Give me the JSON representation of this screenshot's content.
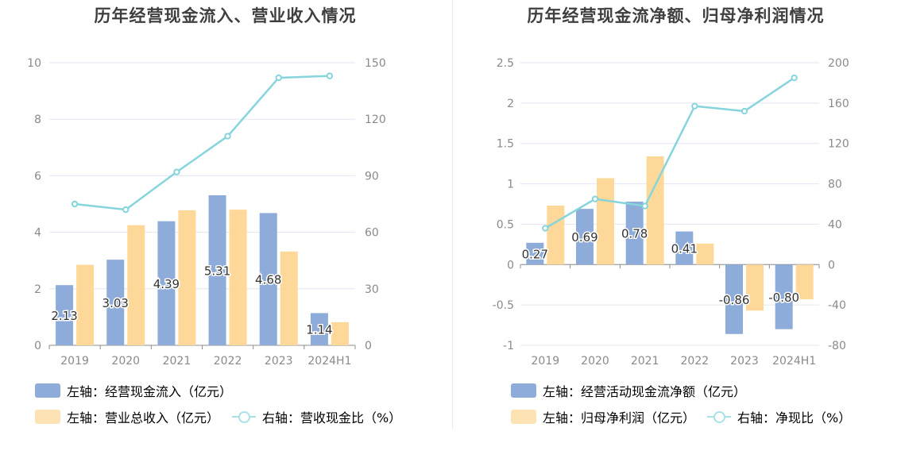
{
  "colors": {
    "bar_primary": "#8eacd9",
    "bar_secondary": "#fdd899",
    "bar_primary_legend": "#8eacd9",
    "bar_secondary_legend": "#fde3b4",
    "line": "#86d4dc",
    "grid": "#e3e6f2",
    "axis_text": "#8a8a8a",
    "value_label": "#333333"
  },
  "charts": [
    {
      "title": "历年经营现金流入、营业收入情况",
      "legend": {
        "bar1": "左轴：经营现金流入（亿元）",
        "bar2": "左轴：营业总收入（亿元）",
        "line": "右轴：营收现金比（%）"
      }
    },
    {
      "title": "历年经营现金流净额、归母净利润情况",
      "legend": {
        "bar1": "左轴：经营活动现金流净额（亿元）",
        "bar2": "左轴：归母净利润（亿元）",
        "line": "右轴：净现比（%）"
      }
    }
  ],
  "chart_data": [
    {
      "type": "bar",
      "title": "历年经营现金流入、营业收入情况",
      "categories": [
        "2019",
        "2020",
        "2021",
        "2022",
        "2023",
        "2024H1"
      ],
      "series": [
        {
          "name": "左轴：经营现金流入（亿元）",
          "axis": "left",
          "type": "bar",
          "values": [
            2.13,
            3.03,
            4.39,
            5.31,
            4.68,
            1.14
          ],
          "labels": [
            "2.13",
            "3.03",
            "4.39",
            "5.31",
            "4.68",
            "1.14"
          ]
        },
        {
          "name": "左轴：营业总收入（亿元）",
          "axis": "left",
          "type": "bar",
          "values": [
            2.85,
            4.25,
            4.78,
            4.8,
            3.32,
            0.82
          ]
        },
        {
          "name": "右轴：营收现金比（%）",
          "axis": "right",
          "type": "line",
          "values": [
            75,
            72,
            92,
            111,
            142,
            143
          ]
        }
      ],
      "left_axis": {
        "ylim": [
          0,
          10
        ],
        "ticks": [
          "0",
          "2",
          "4",
          "6",
          "8",
          "10"
        ]
      },
      "right_axis": {
        "ylim": [
          0,
          150
        ],
        "ticks": [
          "0",
          "30",
          "60",
          "90",
          "120",
          "150"
        ]
      },
      "grid": true,
      "legend_position": "bottom-left"
    },
    {
      "type": "bar",
      "title": "历年经营现金流净额、归母净利润情况",
      "categories": [
        "2019",
        "2020",
        "2021",
        "2022",
        "2023",
        "2024H1"
      ],
      "series": [
        {
          "name": "左轴：经营活动现金流净额（亿元）",
          "axis": "left",
          "type": "bar",
          "values": [
            0.27,
            0.69,
            0.78,
            0.41,
            -0.86,
            -0.8
          ],
          "labels": [
            "0.27",
            "0.69",
            "0.78",
            "0.41",
            "-0.86",
            "-0.80"
          ]
        },
        {
          "name": "左轴：归母净利润（亿元）",
          "axis": "left",
          "type": "bar",
          "values": [
            0.73,
            1.07,
            1.34,
            0.26,
            -0.57,
            -0.43
          ]
        },
        {
          "name": "右轴：净现比（%）",
          "axis": "right",
          "type": "line",
          "values": [
            36,
            65,
            58,
            157,
            152,
            185
          ]
        }
      ],
      "left_axis": {
        "ylim": [
          -1,
          2.5
        ],
        "ticks": [
          "-1",
          "-0.5",
          "0",
          "0.5",
          "1",
          "1.5",
          "2",
          "2.5"
        ]
      },
      "right_axis": {
        "ylim": [
          -80,
          200
        ],
        "ticks": [
          "-80",
          "-40",
          "0",
          "40",
          "80",
          "120",
          "160",
          "200"
        ]
      },
      "grid": true,
      "legend_position": "bottom-left"
    }
  ]
}
